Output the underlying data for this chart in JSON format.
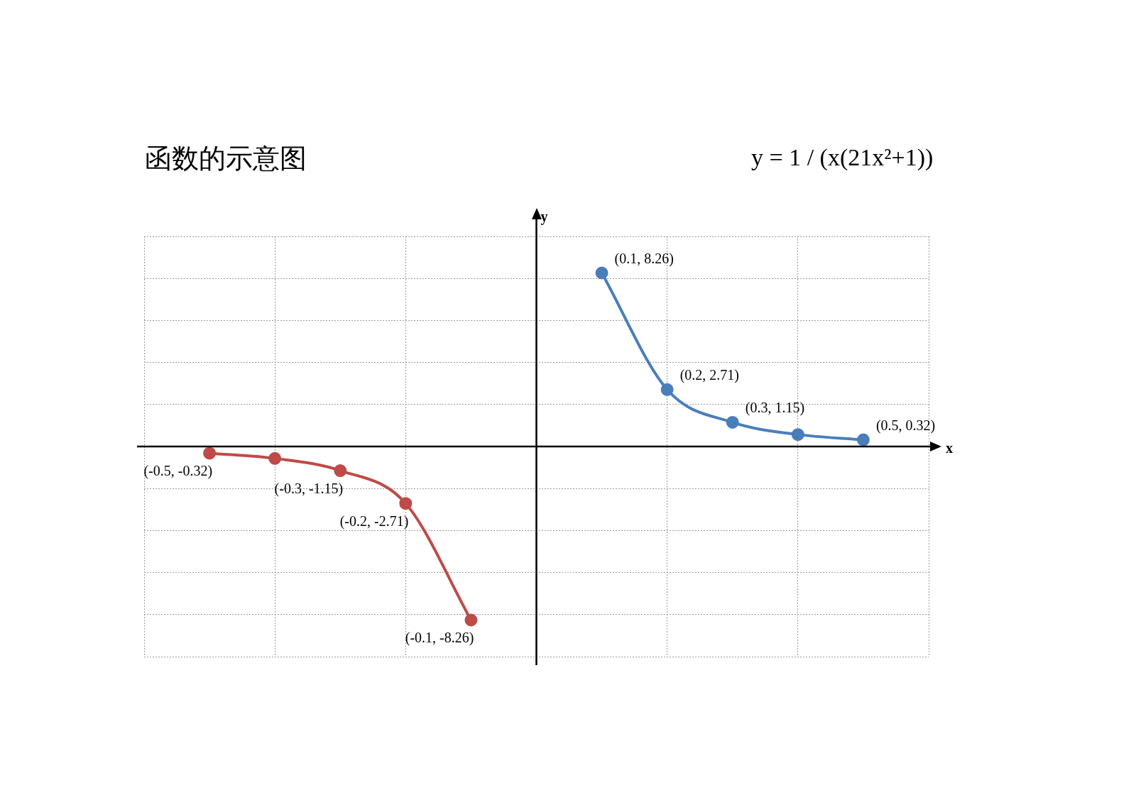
{
  "chart_data": {
    "type": "line",
    "title": "函数的示意图",
    "annotations": [
      "y = 1 / (x(21x²+1))"
    ],
    "xlabel": "x",
    "ylabel": "y",
    "categories": [
      null,
      null,
      null,
      null,
      null,
      null,
      null,
      null,
      null,
      null,
      null,
      null,
      null
    ],
    "ylim": [
      -10,
      10
    ],
    "yticks": [
      -10,
      -8,
      -6,
      -4,
      -2,
      0,
      2,
      4,
      6,
      8,
      10
    ],
    "tick_labels": false,
    "grid": true,
    "marker": "circle",
    "line_style": "solid",
    "series": [
      {
        "color": "#4a7ebb",
        "values": [
          null,
          null,
          null,
          null,
          null,
          null,
          null,
          8.26,
          2.71,
          1.15,
          0.57,
          0.32,
          null
        ],
        "value_labels": [
          null,
          null,
          null,
          null,
          null,
          null,
          null,
          "(0.1, 8.26)",
          "(0.2, 2.71)",
          "(0.3, 1.15)",
          null,
          "(0.5, 0.32)",
          null
        ]
      },
      {
        "color": "#be4b48",
        "values": [
          null,
          -0.32,
          -0.57,
          -1.15,
          -2.71,
          -8.26,
          null,
          null,
          null,
          null,
          null,
          null,
          null
        ],
        "value_labels": [
          null,
          "(-0.5, -0.32)",
          null,
          "(-0.3, -1.15)",
          "(-0.2, -2.71)",
          "(-0.1, -8.26)",
          null,
          null,
          null,
          null,
          null,
          null,
          null
        ]
      }
    ]
  }
}
